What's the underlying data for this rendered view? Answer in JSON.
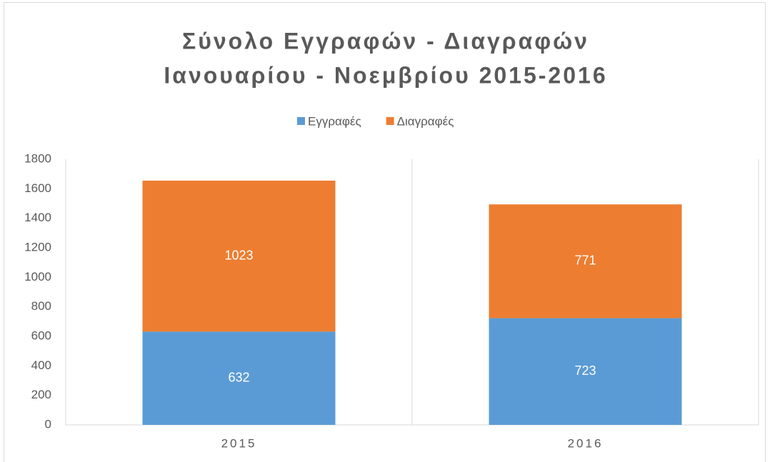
{
  "chart_data": {
    "type": "stacked_bar",
    "title": [
      "Σύνολο Εγγραφών - Διαγραφών",
      "Ιανουαρίου - Νοεμβρίου 2015-2016"
    ],
    "categories": [
      "2015",
      "2016"
    ],
    "series": [
      {
        "name": "Εγγραφές",
        "color": "#5b9bd5",
        "values": [
          632,
          723
        ]
      },
      {
        "name": "Διαγραφές",
        "color": "#ed7d31",
        "values": [
          1023,
          771
        ]
      }
    ],
    "ylim": [
      0,
      1800
    ],
    "yticks": [
      0,
      200,
      400,
      600,
      800,
      1000,
      1200,
      1400,
      1600,
      1800
    ],
    "legend": "top"
  }
}
